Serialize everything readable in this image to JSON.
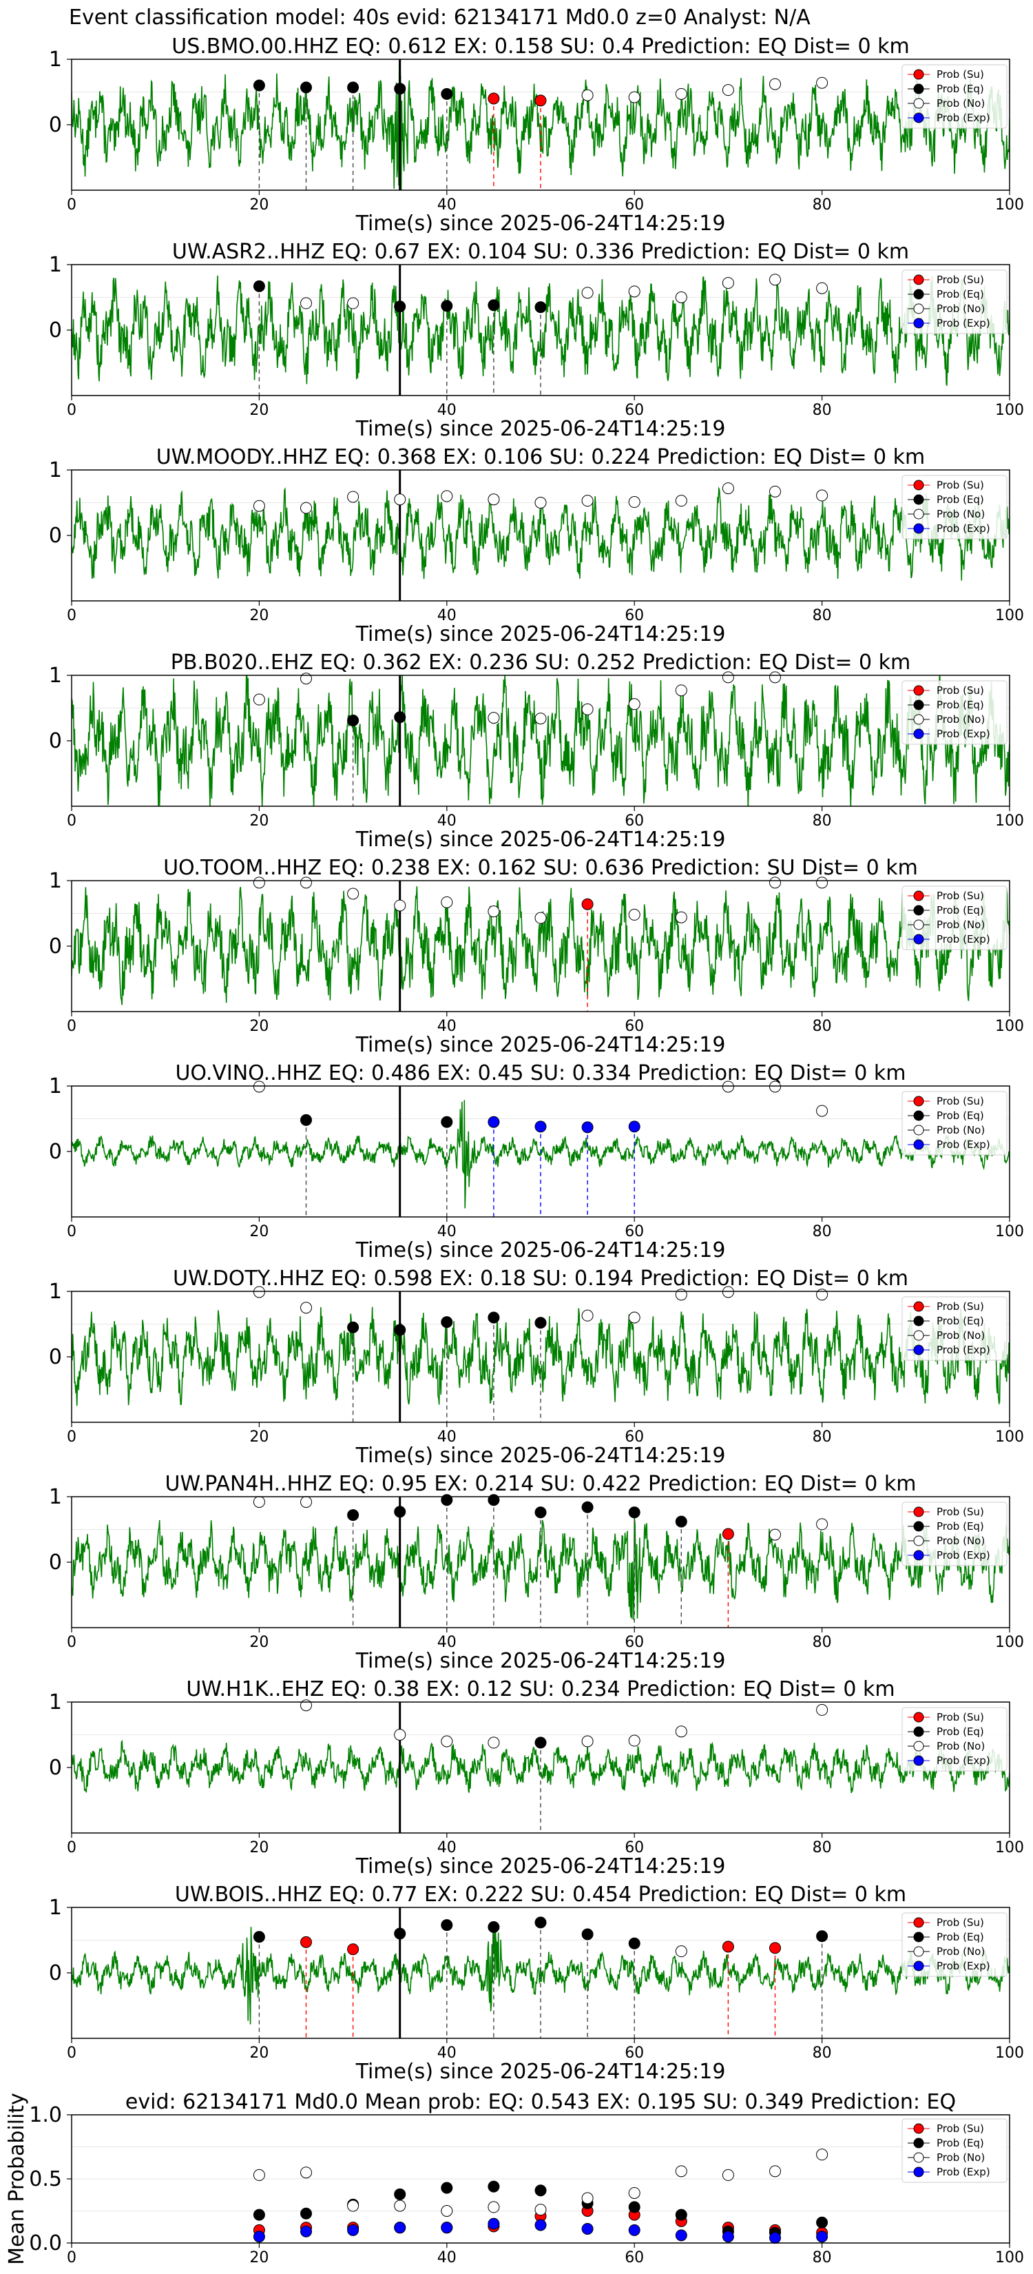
{
  "figure_title": "Event classification model: 40s evid: 62134171 Md0.0 z=0 Analyst: N/A",
  "legend": [
    "Prob (Su)",
    "Prob (Eq)",
    "Prob (No)",
    "Prob (Exp)"
  ],
  "colors": {
    "su": "#ff0000",
    "eq": "#000000",
    "no": "#ffffff",
    "exp": "#0000ff",
    "waveform": "#008000",
    "su_line": "#ff0000",
    "exp_line": "#0000ff"
  },
  "chart_data": [
    {
      "type": "line",
      "title": "US.BMO.00.HHZ   EQ: 0.612  EX: 0.158  SU: 0.4   Prediction: EQ    Dist= 0 km",
      "xlabel": "Time(s) since 2025-06-24T14:25:19",
      "xlim": [
        0,
        100
      ],
      "ylim": [
        -1,
        1
      ],
      "xticks": [
        0,
        20,
        40,
        60,
        80,
        100
      ],
      "yticks": [
        0,
        1
      ],
      "amp": 0.55,
      "spike": [
        {
          "x": 35,
          "amp": 1.7
        }
      ],
      "p_line": 35,
      "markers": [
        {
          "t": 20,
          "p": 0.6,
          "c": "eq"
        },
        {
          "t": 25,
          "p": 0.57,
          "c": "eq"
        },
        {
          "t": 30,
          "p": 0.57,
          "c": "eq"
        },
        {
          "t": 35,
          "p": 0.55,
          "c": "eq"
        },
        {
          "t": 40,
          "p": 0.47,
          "c": "eq"
        },
        {
          "t": 45,
          "p": 0.4,
          "c": "su"
        },
        {
          "t": 50,
          "p": 0.37,
          "c": "su"
        },
        {
          "t": 55,
          "p": 0.45,
          "c": "no"
        },
        {
          "t": 60,
          "p": 0.42,
          "c": "no"
        },
        {
          "t": 65,
          "p": 0.47,
          "c": "no"
        },
        {
          "t": 70,
          "p": 0.53,
          "c": "no"
        },
        {
          "t": 75,
          "p": 0.62,
          "c": "no"
        },
        {
          "t": 80,
          "p": 0.64,
          "c": "no"
        }
      ]
    },
    {
      "type": "line",
      "title": "UW.ASR2..HHZ   EQ: 0.67  EX: 0.104  SU: 0.336   Prediction: EQ    Dist= 0 km",
      "xlabel": "Time(s) since 2025-06-24T14:25:19",
      "xlim": [
        0,
        100
      ],
      "ylim": [
        -1,
        1
      ],
      "xticks": [
        0,
        20,
        40,
        60,
        80,
        100
      ],
      "yticks": [
        0,
        1
      ],
      "amp": 0.6,
      "spike": [],
      "p_line": 35,
      "markers": [
        {
          "t": 20,
          "p": 0.67,
          "c": "eq"
        },
        {
          "t": 25,
          "p": 0.41,
          "c": "no"
        },
        {
          "t": 30,
          "p": 0.41,
          "c": "no"
        },
        {
          "t": 35,
          "p": 0.36,
          "c": "eq"
        },
        {
          "t": 40,
          "p": 0.37,
          "c": "eq"
        },
        {
          "t": 45,
          "p": 0.38,
          "c": "eq"
        },
        {
          "t": 50,
          "p": 0.35,
          "c": "eq"
        },
        {
          "t": 55,
          "p": 0.57,
          "c": "no"
        },
        {
          "t": 60,
          "p": 0.59,
          "c": "no"
        },
        {
          "t": 65,
          "p": 0.5,
          "c": "no"
        },
        {
          "t": 70,
          "p": 0.72,
          "c": "no"
        },
        {
          "t": 75,
          "p": 0.77,
          "c": "no"
        },
        {
          "t": 80,
          "p": 0.64,
          "c": "no"
        }
      ]
    },
    {
      "type": "line",
      "title": "UW.MOODY..HHZ   EQ: 0.368  EX: 0.106  SU: 0.224   Prediction: EQ    Dist= 0 km",
      "xlabel": "Time(s) since 2025-06-24T14:25:19",
      "xlim": [
        0,
        100
      ],
      "ylim": [
        -1,
        1
      ],
      "xticks": [
        0,
        20,
        40,
        60,
        80,
        100
      ],
      "yticks": [
        0,
        1
      ],
      "amp": 0.5,
      "spike": [],
      "p_line": 35,
      "markers": [
        {
          "t": 20,
          "p": 0.45,
          "c": "no"
        },
        {
          "t": 25,
          "p": 0.42,
          "c": "no"
        },
        {
          "t": 30,
          "p": 0.59,
          "c": "no"
        },
        {
          "t": 35,
          "p": 0.55,
          "c": "no"
        },
        {
          "t": 40,
          "p": 0.6,
          "c": "no"
        },
        {
          "t": 45,
          "p": 0.55,
          "c": "no"
        },
        {
          "t": 50,
          "p": 0.5,
          "c": "no"
        },
        {
          "t": 55,
          "p": 0.53,
          "c": "no"
        },
        {
          "t": 60,
          "p": 0.51,
          "c": "no"
        },
        {
          "t": 65,
          "p": 0.53,
          "c": "no"
        },
        {
          "t": 70,
          "p": 0.72,
          "c": "no"
        },
        {
          "t": 75,
          "p": 0.67,
          "c": "no"
        },
        {
          "t": 80,
          "p": 0.61,
          "c": "no"
        }
      ]
    },
    {
      "type": "line",
      "title": "PB.B020..EHZ   EQ: 0.362  EX: 0.236  SU: 0.252   Prediction: EQ    Dist= 0 km",
      "xlabel": "Time(s) since 2025-06-24T14:25:19",
      "xlim": [
        0,
        100
      ],
      "ylim": [
        -1,
        1
      ],
      "xticks": [
        0,
        20,
        40,
        60,
        80,
        100
      ],
      "yticks": [
        0,
        1
      ],
      "amp": 0.75,
      "spike": [],
      "p_line": 35,
      "markers": [
        {
          "t": 20,
          "p": 0.63,
          "c": "no"
        },
        {
          "t": 25,
          "p": 0.95,
          "c": "no"
        },
        {
          "t": 30,
          "p": 0.31,
          "c": "eq"
        },
        {
          "t": 35,
          "p": 0.36,
          "c": "eq"
        },
        {
          "t": 45,
          "p": 0.35,
          "c": "no"
        },
        {
          "t": 50,
          "p": 0.34,
          "c": "no"
        },
        {
          "t": 55,
          "p": 0.48,
          "c": "no"
        },
        {
          "t": 60,
          "p": 0.56,
          "c": "no"
        },
        {
          "t": 65,
          "p": 0.77,
          "c": "no"
        },
        {
          "t": 70,
          "p": 0.97,
          "c": "no"
        },
        {
          "t": 75,
          "p": 0.97,
          "c": "no"
        }
      ]
    },
    {
      "type": "line",
      "title": "UO.TOOM..HHZ   EQ: 0.238  EX: 0.162  SU: 0.636   Prediction: SU    Dist= 0 km",
      "xlabel": "Time(s) since 2025-06-24T14:25:19",
      "xlim": [
        0,
        100
      ],
      "ylim": [
        -1,
        1
      ],
      "xticks": [
        0,
        20,
        40,
        60,
        80,
        100
      ],
      "yticks": [
        0,
        1
      ],
      "amp": 0.65,
      "spike": [],
      "p_line": 35,
      "markers": [
        {
          "t": 20,
          "p": 0.97,
          "c": "no"
        },
        {
          "t": 25,
          "p": 0.97,
          "c": "no"
        },
        {
          "t": 30,
          "p": 0.8,
          "c": "no"
        },
        {
          "t": 35,
          "p": 0.62,
          "c": "no"
        },
        {
          "t": 40,
          "p": 0.67,
          "c": "no"
        },
        {
          "t": 45,
          "p": 0.53,
          "c": "no"
        },
        {
          "t": 50,
          "p": 0.43,
          "c": "no"
        },
        {
          "t": 55,
          "p": 0.64,
          "c": "su"
        },
        {
          "t": 60,
          "p": 0.48,
          "c": "no"
        },
        {
          "t": 65,
          "p": 0.44,
          "c": "no"
        },
        {
          "t": 75,
          "p": 0.97,
          "c": "no"
        },
        {
          "t": 80,
          "p": 0.97,
          "c": "no"
        }
      ]
    },
    {
      "type": "line",
      "title": "UO.VINO..HHZ   EQ: 0.486  EX: 0.45  SU: 0.334   Prediction: EQ    Dist= 0 km",
      "xlabel": "Time(s) since 2025-06-24T14:25:19",
      "xlim": [
        0,
        100
      ],
      "ylim": [
        -1,
        1
      ],
      "xticks": [
        0,
        20,
        40,
        60,
        80,
        100
      ],
      "yticks": [
        0,
        1
      ],
      "amp": 0.18,
      "spike": [
        {
          "x": 42,
          "amp": 1.0
        }
      ],
      "p_line": 35,
      "markers": [
        {
          "t": 20,
          "p": 0.99,
          "c": "no"
        },
        {
          "t": 25,
          "p": 0.48,
          "c": "eq"
        },
        {
          "t": 40,
          "p": 0.45,
          "c": "eq"
        },
        {
          "t": 45,
          "p": 0.45,
          "c": "exp"
        },
        {
          "t": 50,
          "p": 0.38,
          "c": "exp"
        },
        {
          "t": 55,
          "p": 0.37,
          "c": "exp"
        },
        {
          "t": 60,
          "p": 0.38,
          "c": "exp"
        },
        {
          "t": 70,
          "p": 0.99,
          "c": "no"
        },
        {
          "t": 75,
          "p": 0.99,
          "c": "no"
        },
        {
          "t": 80,
          "p": 0.62,
          "c": "no"
        }
      ]
    },
    {
      "type": "line",
      "title": "UW.DOTY..HHZ   EQ: 0.598  EX: 0.18  SU: 0.194   Prediction: EQ    Dist= 0 km",
      "xlabel": "Time(s) since 2025-06-24T14:25:19",
      "xlim": [
        0,
        100
      ],
      "ylim": [
        -1,
        1
      ],
      "xticks": [
        0,
        20,
        40,
        60,
        80,
        100
      ],
      "yticks": [
        0,
        1
      ],
      "amp": 0.55,
      "spike": [],
      "p_line": 35,
      "markers": [
        {
          "t": 20,
          "p": 0.99,
          "c": "no"
        },
        {
          "t": 25,
          "p": 0.75,
          "c": "no"
        },
        {
          "t": 30,
          "p": 0.45,
          "c": "eq"
        },
        {
          "t": 35,
          "p": 0.41,
          "c": "eq"
        },
        {
          "t": 40,
          "p": 0.53,
          "c": "eq"
        },
        {
          "t": 45,
          "p": 0.6,
          "c": "eq"
        },
        {
          "t": 50,
          "p": 0.52,
          "c": "eq"
        },
        {
          "t": 55,
          "p": 0.63,
          "c": "no"
        },
        {
          "t": 60,
          "p": 0.6,
          "c": "no"
        },
        {
          "t": 65,
          "p": 0.95,
          "c": "no"
        },
        {
          "t": 70,
          "p": 0.99,
          "c": "no"
        },
        {
          "t": 80,
          "p": 0.95,
          "c": "no"
        }
      ]
    },
    {
      "type": "line",
      "title": "UW.PAN4H..HHZ   EQ: 0.95  EX: 0.214  SU: 0.422   Prediction: EQ    Dist= 0 km",
      "xlabel": "Time(s) since 2025-06-24T14:25:19",
      "xlim": [
        0,
        100
      ],
      "ylim": [
        -1,
        1
      ],
      "xticks": [
        0,
        20,
        40,
        60,
        80,
        100
      ],
      "yticks": [
        0,
        1
      ],
      "amp": 0.45,
      "spike": [
        {
          "x": 60,
          "amp": 1.0
        }
      ],
      "p_line": 35,
      "markers": [
        {
          "t": 20,
          "p": 0.92,
          "c": "no"
        },
        {
          "t": 25,
          "p": 0.92,
          "c": "no"
        },
        {
          "t": 30,
          "p": 0.72,
          "c": "eq"
        },
        {
          "t": 35,
          "p": 0.77,
          "c": "eq"
        },
        {
          "t": 40,
          "p": 0.95,
          "c": "eq"
        },
        {
          "t": 45,
          "p": 0.95,
          "c": "eq"
        },
        {
          "t": 50,
          "p": 0.76,
          "c": "eq"
        },
        {
          "t": 55,
          "p": 0.84,
          "c": "eq"
        },
        {
          "t": 60,
          "p": 0.76,
          "c": "eq"
        },
        {
          "t": 65,
          "p": 0.62,
          "c": "eq"
        },
        {
          "t": 70,
          "p": 0.43,
          "c": "su"
        },
        {
          "t": 75,
          "p": 0.42,
          "c": "no"
        },
        {
          "t": 80,
          "p": 0.58,
          "c": "no"
        }
      ]
    },
    {
      "type": "line",
      "title": "UW.H1K..EHZ   EQ: 0.38  EX: 0.12  SU: 0.234   Prediction: EQ    Dist= 0 km",
      "xlabel": "Time(s) since 2025-06-24T14:25:19",
      "xlim": [
        0,
        100
      ],
      "ylim": [
        -1,
        1
      ],
      "xticks": [
        0,
        20,
        40,
        60,
        80,
        100
      ],
      "yticks": [
        0,
        1
      ],
      "amp": 0.28,
      "spike": [],
      "p_line": 35,
      "markers": [
        {
          "t": 25,
          "p": 0.95,
          "c": "no"
        },
        {
          "t": 35,
          "p": 0.5,
          "c": "no"
        },
        {
          "t": 40,
          "p": 0.4,
          "c": "no"
        },
        {
          "t": 45,
          "p": 0.38,
          "c": "no"
        },
        {
          "t": 50,
          "p": 0.38,
          "c": "eq"
        },
        {
          "t": 55,
          "p": 0.4,
          "c": "no"
        },
        {
          "t": 60,
          "p": 0.41,
          "c": "no"
        },
        {
          "t": 65,
          "p": 0.55,
          "c": "no"
        },
        {
          "t": 80,
          "p": 0.88,
          "c": "no"
        }
      ]
    },
    {
      "type": "line",
      "title": "UW.BOIS..HHZ   EQ: 0.77  EX: 0.222  SU: 0.454   Prediction: EQ    Dist= 0 km",
      "xlabel": "Time(s) since 2025-06-24T14:25:19",
      "xlim": [
        0,
        100
      ],
      "ylim": [
        -1,
        1
      ],
      "xticks": [
        0,
        20,
        40,
        60,
        80,
        100
      ],
      "yticks": [
        0,
        1
      ],
      "amp": 0.25,
      "spike": [
        {
          "x": 19,
          "amp": 0.9
        },
        {
          "x": 45,
          "amp": 0.9
        }
      ],
      "p_line": 35,
      "markers": [
        {
          "t": 20,
          "p": 0.55,
          "c": "eq"
        },
        {
          "t": 25,
          "p": 0.47,
          "c": "su"
        },
        {
          "t": 30,
          "p": 0.36,
          "c": "su"
        },
        {
          "t": 35,
          "p": 0.6,
          "c": "eq"
        },
        {
          "t": 40,
          "p": 0.73,
          "c": "eq"
        },
        {
          "t": 45,
          "p": 0.7,
          "c": "eq"
        },
        {
          "t": 50,
          "p": 0.77,
          "c": "eq"
        },
        {
          "t": 55,
          "p": 0.59,
          "c": "eq"
        },
        {
          "t": 60,
          "p": 0.45,
          "c": "eq"
        },
        {
          "t": 65,
          "p": 0.33,
          "c": "no"
        },
        {
          "t": 70,
          "p": 0.4,
          "c": "su"
        },
        {
          "t": 75,
          "p": 0.38,
          "c": "su"
        },
        {
          "t": 80,
          "p": 0.56,
          "c": "eq"
        }
      ]
    },
    {
      "type": "scatter",
      "title": "evid: 62134171  Md0.0   Mean prob:   EQ: 0.543  EX: 0.195  SU: 0.349   Prediction: EQ",
      "ylabel": "Mean Probability",
      "xlim": [
        0,
        100
      ],
      "ylim": [
        0,
        1
      ],
      "xticks": [
        0,
        20,
        40,
        60,
        80,
        100
      ],
      "yticks": [
        0.0,
        0.5,
        1.0
      ],
      "yticklabels": [
        "0.0",
        "0.5",
        "1.0"
      ],
      "t": [
        20,
        25,
        30,
        35,
        40,
        45,
        50,
        55,
        60,
        65,
        70,
        75,
        80
      ],
      "series": [
        {
          "key": "su",
          "values": [
            0.1,
            0.12,
            0.12,
            0.12,
            0.12,
            0.13,
            0.21,
            0.25,
            0.22,
            0.17,
            0.12,
            0.1,
            0.08
          ]
        },
        {
          "key": "eq",
          "values": [
            0.22,
            0.23,
            0.3,
            0.38,
            0.43,
            0.44,
            0.41,
            0.31,
            0.28,
            0.22,
            0.09,
            0.08,
            0.16
          ]
        },
        {
          "key": "no",
          "values": [
            0.53,
            0.55,
            0.29,
            0.29,
            0.25,
            0.28,
            0.26,
            0.35,
            0.39,
            0.56,
            0.53,
            0.56,
            0.69
          ]
        },
        {
          "key": "exp",
          "values": [
            0.05,
            0.09,
            0.1,
            0.12,
            0.12,
            0.15,
            0.14,
            0.11,
            0.1,
            0.06,
            0.05,
            0.04,
            0.05
          ]
        }
      ]
    }
  ]
}
